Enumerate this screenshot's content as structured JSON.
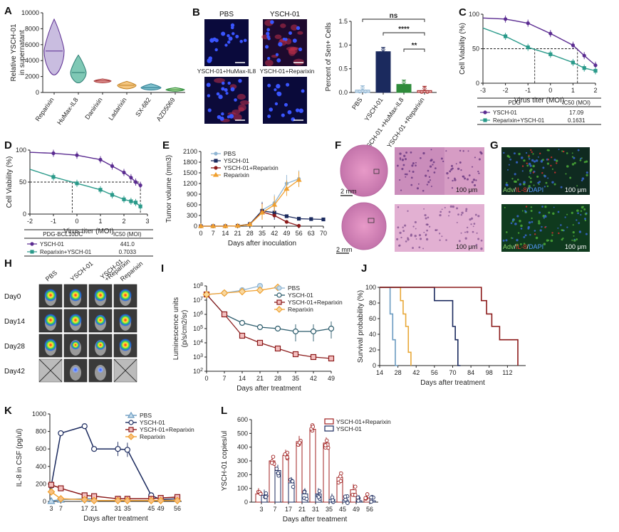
{
  "colors": {
    "purple": "#5b2c91",
    "teal": "#2a9a8a",
    "navy": "#1b2a5e",
    "darkred": "#8b1a1a",
    "lightblue": "#8fb5d3",
    "orange": "#f0a030",
    "green": "#2e8b3a",
    "lavender": "#c8b8e0",
    "mint": "#7fc8b5",
    "salmon": "#e89080",
    "goldline": "#e8a838"
  },
  "panels": {
    "A": "A",
    "B": "B",
    "C": "C",
    "D": "D",
    "E": "E",
    "F": "F",
    "G": "G",
    "H": "H",
    "I": "I",
    "J": "J",
    "K": "K",
    "L": "L"
  },
  "panelB_images": {
    "tl": "PBS",
    "tr": "YSCH-01",
    "bl": "YSCH-01+HuMax-IL8",
    "br": "YSCH-01+Reparixin"
  },
  "panelF": {
    "scale1": "2 mm",
    "scale2": "2 mm",
    "zoom1": "100 μm",
    "zoom2": "100 μm"
  },
  "panelG": {
    "scale1": "100 μm",
    "scale2": "100 μm",
    "stain1": [
      "Adv",
      "/",
      "IL-8",
      "/",
      "DAPI"
    ],
    "stain2": [
      "Adv",
      "/",
      "IL-8",
      "/",
      "DAPI"
    ]
  },
  "panelH": {
    "cols": [
      "PBS",
      "YSCH-01",
      "YSCH-01 +Reparixin",
      "Reparixin"
    ],
    "rows": [
      "Day0",
      "Day14",
      "Day28",
      "Day42"
    ]
  },
  "chart_data": [
    {
      "id": "A",
      "type": "violin",
      "ylabel": "Relative YSCH-01 in supernatant",
      "ylim": [
        0,
        10000
      ],
      "yticks": [
        "0",
        "2000",
        "4000",
        "6000",
        "8000",
        "10000"
      ],
      "categories": [
        "Reparixin",
        "HuMax-IL8",
        "Danirixin",
        "Ladarixin",
        "SX-682",
        "AZD5069"
      ],
      "medians": [
        5200,
        2500,
        1450,
        900,
        600,
        350
      ]
    },
    {
      "id": "B",
      "type": "bar",
      "ylabel": "Percent of Sen+ Cells",
      "ylim": [
        0,
        1.5
      ],
      "yticks": [
        "0.0",
        "0.5",
        "1.0",
        "1.5"
      ],
      "categories": [
        "PBS",
        "YSCH-01",
        "YSCH-01 +HuMax-IL8",
        "YSCH-01 +Reparixin"
      ],
      "values": [
        0.05,
        0.86,
        0.17,
        0.04
      ],
      "significance": [
        "ns",
        "****",
        "**"
      ]
    },
    {
      "id": "C",
      "type": "line",
      "ylabel": "Cell Viability (%)",
      "xlabel": "Virus titer (MOI)",
      "xlim": [
        -3,
        2
      ],
      "ylim": [
        0,
        100
      ],
      "xticks": [
        "-3",
        "-2",
        "-1",
        "0",
        "1",
        "2"
      ],
      "yticks": [
        "0",
        "50",
        "100"
      ],
      "series": [
        {
          "name": "YSCH-01",
          "x": [
            -2,
            -1,
            0,
            1,
            1.5,
            2
          ],
          "y": [
            93,
            87,
            72,
            55,
            40,
            26
          ]
        },
        {
          "name": "Reparixin+YSCH-01",
          "x": [
            -2,
            -1,
            0,
            1,
            1.5,
            2
          ],
          "y": [
            68,
            52,
            42,
            30,
            22,
            18
          ]
        }
      ],
      "table": {
        "headers": [
          "PDG",
          "IC50 (MOI)"
        ],
        "rows": [
          [
            "YSCH-01",
            "17.09"
          ],
          [
            "Reparixin+YSCH-01",
            "0.1631"
          ]
        ]
      }
    },
    {
      "id": "D",
      "type": "line",
      "ylabel": "Cell Viability (%)",
      "xlabel": "Virus titer (MOI)",
      "xlim": [
        -2,
        3
      ],
      "ylim": [
        0,
        100
      ],
      "xticks": [
        "-2",
        "-1",
        "0",
        "1",
        "2",
        "3"
      ],
      "yticks": [
        "0",
        "50",
        "100"
      ],
      "series": [
        {
          "name": "YSCH-01",
          "x": [
            -1,
            0,
            1,
            1.5,
            2,
            2.3,
            2.5,
            2.7
          ],
          "y": [
            95,
            92,
            85,
            75,
            65,
            57,
            50,
            45
          ]
        },
        {
          "name": "Reparixin+YSCH-01",
          "x": [
            -1,
            0,
            1,
            1.5,
            2,
            2.3,
            2.5,
            2.7
          ],
          "y": [
            58,
            48,
            38,
            30,
            23,
            20,
            18,
            12
          ]
        }
      ],
      "table": {
        "headers": [
          "PDG-BCL10DC",
          "IC50 (MOI)"
        ],
        "rows": [
          [
            "YSCH-01",
            "441.0"
          ],
          [
            "Reparixin+YSCH-01",
            "0.7033"
          ]
        ]
      }
    },
    {
      "id": "E",
      "type": "line",
      "ylabel": "Tumor volume (mm3)",
      "xlabel": "Days after  inoculation",
      "xlim": [
        0,
        70
      ],
      "ylim": [
        0,
        2100
      ],
      "xticks": [
        "0",
        "7",
        "14",
        "21",
        "28",
        "35",
        "42",
        "49",
        "56",
        "63",
        "70"
      ],
      "yticks": [
        "0",
        "300",
        "600",
        "900",
        "1200",
        "1500",
        "1800",
        "2100"
      ],
      "series": [
        {
          "name": "PBS",
          "x": [
            0,
            7,
            14,
            21,
            28,
            35,
            42,
            49,
            56
          ],
          "y": [
            0,
            0,
            0,
            10,
            60,
            450,
            650,
            1200,
            1330
          ]
        },
        {
          "name": "YSCH-01",
          "x": [
            0,
            7,
            14,
            21,
            28,
            35,
            42,
            49,
            56,
            63,
            70
          ],
          "y": [
            0,
            0,
            0,
            10,
            60,
            430,
            380,
            280,
            210,
            200,
            190
          ]
        },
        {
          "name": "YSCH-01+Reparixin",
          "x": [
            0,
            7,
            14,
            21,
            28,
            35,
            42,
            49,
            56
          ],
          "y": [
            0,
            0,
            0,
            10,
            50,
            400,
            300,
            120,
            10
          ]
        },
        {
          "name": "Reparixin",
          "x": [
            0,
            7,
            14,
            21,
            28,
            35,
            42,
            49,
            56
          ],
          "y": [
            0,
            0,
            0,
            10,
            50,
            380,
            600,
            1050,
            1300
          ]
        }
      ]
    },
    {
      "id": "I",
      "type": "line",
      "ylabel": "Luminescence units (p/s/cm2/sr)",
      "xlabel": "Days after treatment",
      "xlim": [
        0,
        49
      ],
      "ylim_log10": [
        2,
        8
      ],
      "xticks": [
        "0",
        "7",
        "14",
        "21",
        "28",
        "35",
        "42",
        "49"
      ],
      "yticks": [
        "10^2",
        "10^3",
        "10^4",
        "10^5",
        "10^6",
        "10^7",
        "10^8"
      ],
      "series": [
        {
          "name": "PBS",
          "x": [
            0,
            7,
            14,
            21
          ],
          "log10y": [
            7.4,
            7.5,
            7.7,
            8.0
          ]
        },
        {
          "name": "YSCH-01",
          "x": [
            0,
            7,
            14,
            21,
            28,
            35,
            42,
            49
          ],
          "log10y": [
            7.4,
            6.0,
            5.4,
            5.1,
            5.0,
            4.8,
            4.8,
            5.0
          ]
        },
        {
          "name": "YSCH-01+Reparixin",
          "x": [
            0,
            7,
            14,
            21,
            28,
            35,
            42,
            49
          ],
          "log10y": [
            7.4,
            6.0,
            4.5,
            4.0,
            3.6,
            3.2,
            3.0,
            2.9
          ]
        },
        {
          "name": "Reparixin",
          "x": [
            0,
            7,
            14,
            21,
            28
          ],
          "log10y": [
            7.4,
            7.5,
            7.6,
            7.7,
            7.9
          ]
        }
      ]
    },
    {
      "id": "J",
      "type": "line",
      "ylabel": "Survival probability (%)",
      "xlabel": "Days after treatment",
      "xlim": [
        14,
        126
      ],
      "ylim": [
        0,
        100
      ],
      "xticks": [
        "14",
        "28",
        "42",
        "56",
        "70",
        "84",
        "98",
        "112"
      ],
      "yticks": [
        "0",
        "20",
        "40",
        "60",
        "80",
        "100"
      ],
      "series": [
        {
          "name": "PBS",
          "x": [
            14,
            20,
            22,
            24,
            26,
            28
          ],
          "y": [
            100,
            100,
            66,
            33,
            0,
            0
          ]
        },
        {
          "name": "Reparixin",
          "x": [
            26,
            28,
            30,
            32,
            34,
            36,
            38
          ],
          "y": [
            100,
            100,
            83,
            66,
            50,
            17,
            0
          ]
        },
        {
          "name": "YSCH-01",
          "x": [
            52,
            56,
            68,
            70,
            72,
            74,
            76
          ],
          "y": [
            100,
            83,
            83,
            50,
            33,
            0,
            0
          ]
        },
        {
          "name": "YSCH-01+Reparixin",
          "x": [
            84,
            88,
            92,
            96,
            100,
            106,
            112,
            120
          ],
          "y": [
            100,
            100,
            83,
            66,
            50,
            33,
            33,
            0
          ]
        }
      ]
    },
    {
      "id": "K",
      "type": "line",
      "ylabel": "IL-8 in CSF (pg/ul)",
      "xlabel": "Days after treatment",
      "xlim": [
        3,
        56
      ],
      "ylim": [
        0,
        1000
      ],
      "xticks": [
        "3",
        "7",
        "17",
        "21",
        "31",
        "35",
        "45",
        "49",
        "56"
      ],
      "yticks": [
        "0",
        "200",
        "400",
        "600",
        "800",
        "1000"
      ],
      "series": [
        {
          "name": "PBS",
          "x": [
            3,
            7,
            17,
            21
          ],
          "y": [
            5,
            20,
            30,
            30
          ]
        },
        {
          "name": "YSCH-01",
          "x": [
            3,
            7,
            17,
            21,
            31,
            35,
            45,
            49,
            56
          ],
          "y": [
            180,
            780,
            860,
            600,
            600,
            590,
            70,
            20,
            30
          ]
        },
        {
          "name": "YSCH-01+Reparixin",
          "x": [
            3,
            7,
            17,
            21,
            31,
            35,
            45,
            49,
            56
          ],
          "y": [
            190,
            150,
            70,
            60,
            30,
            30,
            30,
            40,
            50
          ]
        },
        {
          "name": "Reparixin",
          "x": [
            3,
            7,
            17,
            21,
            31,
            35,
            45,
            49,
            56
          ],
          "y": [
            110,
            30,
            20,
            10,
            10,
            10,
            10,
            10,
            10
          ]
        }
      ]
    },
    {
      "id": "L",
      "type": "bar",
      "ylabel": "YSCH-01 copies/ul",
      "xlabel": "Days after treatment",
      "ylim": [
        0,
        600
      ],
      "yticks": [
        "0",
        "100",
        "200",
        "300",
        "400",
        "500",
        "600"
      ],
      "categories": [
        "3",
        "7",
        "17",
        "21",
        "31",
        "35",
        "45",
        "49",
        "56"
      ],
      "series": [
        {
          "name": "YSCH-01+Reparixin",
          "values": [
            60,
            300,
            340,
            440,
            530,
            430,
            180,
            90,
            30
          ]
        },
        {
          "name": "YSCH-01",
          "values": [
            50,
            230,
            140,
            60,
            60,
            20,
            15,
            10,
            10
          ]
        }
      ]
    }
  ]
}
